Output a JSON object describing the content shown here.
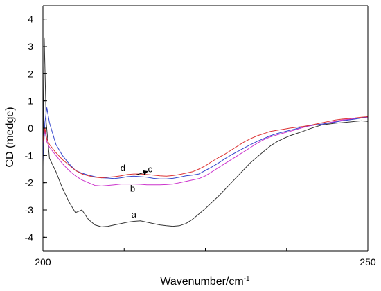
{
  "chart_data": {
    "type": "line",
    "title": "",
    "xlabel": "Wavenumber/cm",
    "xlabel_superscript": "-1",
    "ylabel": "CD (medge)",
    "xlim": [
      200,
      250
    ],
    "ylim": [
      -4.5,
      4.5
    ],
    "x_ticks": [
      200,
      250
    ],
    "y_ticks": [
      -4,
      -3,
      -2,
      -1,
      0,
      1,
      2,
      3,
      4
    ],
    "grid": false,
    "legend": "none",
    "series": [
      {
        "name": "a",
        "color": "#333333",
        "points": [
          [
            200,
            -1.4
          ],
          [
            200.2,
            3.3
          ],
          [
            200.5,
            0.2
          ],
          [
            201,
            -1.1
          ],
          [
            202,
            -1.6
          ],
          [
            203,
            -2.2
          ],
          [
            204,
            -2.7
          ],
          [
            205,
            -3.1
          ],
          [
            206,
            -3.0
          ],
          [
            207,
            -3.35
          ],
          [
            208,
            -3.55
          ],
          [
            209,
            -3.62
          ],
          [
            210,
            -3.6
          ],
          [
            211,
            -3.55
          ],
          [
            212,
            -3.5
          ],
          [
            213,
            -3.45
          ],
          [
            214,
            -3.42
          ],
          [
            215,
            -3.4
          ],
          [
            216,
            -3.45
          ],
          [
            217,
            -3.5
          ],
          [
            218,
            -3.55
          ],
          [
            219,
            -3.58
          ],
          [
            220,
            -3.6
          ],
          [
            221,
            -3.58
          ],
          [
            222,
            -3.5
          ],
          [
            223,
            -3.35
          ],
          [
            224,
            -3.15
          ],
          [
            225,
            -2.95
          ],
          [
            226,
            -2.72
          ],
          [
            227,
            -2.5
          ],
          [
            228,
            -2.25
          ],
          [
            229,
            -2.0
          ],
          [
            230,
            -1.75
          ],
          [
            231,
            -1.5
          ],
          [
            232,
            -1.25
          ],
          [
            233,
            -1.05
          ],
          [
            234,
            -0.85
          ],
          [
            235,
            -0.65
          ],
          [
            236,
            -0.5
          ],
          [
            237,
            -0.38
          ],
          [
            238,
            -0.28
          ],
          [
            239,
            -0.2
          ],
          [
            240,
            -0.12
          ],
          [
            241,
            -0.03
          ],
          [
            242,
            0.05
          ],
          [
            243,
            0.12
          ],
          [
            244,
            0.15
          ],
          [
            245,
            0.18
          ],
          [
            246,
            0.2
          ],
          [
            247,
            0.22
          ],
          [
            248,
            0.25
          ],
          [
            249,
            0.27
          ],
          [
            250,
            0.25
          ]
        ]
      },
      {
        "name": "b",
        "color": "#cc33cc",
        "points": [
          [
            200,
            -0.6
          ],
          [
            200.3,
            -0.1
          ],
          [
            200.6,
            -0.5
          ],
          [
            201,
            -0.7
          ],
          [
            202,
            -1.0
          ],
          [
            203,
            -1.3
          ],
          [
            204,
            -1.55
          ],
          [
            205,
            -1.75
          ],
          [
            206,
            -1.9
          ],
          [
            207,
            -2.0
          ],
          [
            208,
            -2.1
          ],
          [
            209,
            -2.12
          ],
          [
            210,
            -2.1
          ],
          [
            211,
            -2.08
          ],
          [
            212,
            -2.05
          ],
          [
            213,
            -2.05
          ],
          [
            214,
            -2.05
          ],
          [
            215,
            -2.06
          ],
          [
            216,
            -2.08
          ],
          [
            217,
            -2.08
          ],
          [
            218,
            -2.08
          ],
          [
            219,
            -2.07
          ],
          [
            220,
            -2.05
          ],
          [
            221,
            -2.0
          ],
          [
            222,
            -1.95
          ],
          [
            223,
            -1.9
          ],
          [
            224,
            -1.85
          ],
          [
            225,
            -1.75
          ],
          [
            226,
            -1.6
          ],
          [
            227,
            -1.45
          ],
          [
            228,
            -1.3
          ],
          [
            229,
            -1.15
          ],
          [
            230,
            -1.0
          ],
          [
            231,
            -0.85
          ],
          [
            232,
            -0.7
          ],
          [
            233,
            -0.55
          ],
          [
            234,
            -0.42
          ],
          [
            235,
            -0.32
          ],
          [
            236,
            -0.25
          ],
          [
            237,
            -0.18
          ],
          [
            238,
            -0.12
          ],
          [
            239,
            -0.05
          ],
          [
            240,
            0.02
          ],
          [
            241,
            0.08
          ],
          [
            242,
            0.12
          ],
          [
            243,
            0.15
          ],
          [
            244,
            0.2
          ],
          [
            245,
            0.25
          ],
          [
            246,
            0.3
          ],
          [
            247,
            0.32
          ],
          [
            248,
            0.35
          ],
          [
            249,
            0.38
          ],
          [
            250,
            0.4
          ]
        ]
      },
      {
        "name": "c",
        "color": "#3344cc",
        "points": [
          [
            200,
            -1.2
          ],
          [
            200.3,
            0.2
          ],
          [
            200.6,
            0.75
          ],
          [
            201,
            0.2
          ],
          [
            202,
            -0.6
          ],
          [
            203,
            -1.0
          ],
          [
            204,
            -1.3
          ],
          [
            205,
            -1.55
          ],
          [
            206,
            -1.65
          ],
          [
            207,
            -1.72
          ],
          [
            208,
            -1.78
          ],
          [
            209,
            -1.82
          ],
          [
            210,
            -1.83
          ],
          [
            211,
            -1.85
          ],
          [
            212,
            -1.82
          ],
          [
            213,
            -1.78
          ],
          [
            214,
            -1.76
          ],
          [
            215,
            -1.78
          ],
          [
            216,
            -1.8
          ],
          [
            217,
            -1.84
          ],
          [
            218,
            -1.86
          ],
          [
            219,
            -1.86
          ],
          [
            220,
            -1.84
          ],
          [
            221,
            -1.8
          ],
          [
            222,
            -1.75
          ],
          [
            223,
            -1.72
          ],
          [
            224,
            -1.68
          ],
          [
            225,
            -1.55
          ],
          [
            226,
            -1.42
          ],
          [
            227,
            -1.28
          ],
          [
            228,
            -1.12
          ],
          [
            229,
            -0.98
          ],
          [
            230,
            -0.85
          ],
          [
            231,
            -0.72
          ],
          [
            232,
            -0.6
          ],
          [
            233,
            -0.48
          ],
          [
            234,
            -0.38
          ],
          [
            235,
            -0.28
          ],
          [
            236,
            -0.2
          ],
          [
            237,
            -0.14
          ],
          [
            238,
            -0.08
          ],
          [
            239,
            -0.02
          ],
          [
            240,
            0.05
          ],
          [
            241,
            0.1
          ],
          [
            242,
            0.12
          ],
          [
            243,
            0.15
          ],
          [
            244,
            0.18
          ],
          [
            245,
            0.22
          ],
          [
            246,
            0.27
          ],
          [
            247,
            0.3
          ],
          [
            248,
            0.33
          ],
          [
            249,
            0.37
          ],
          [
            250,
            0.42
          ]
        ]
      },
      {
        "name": "d",
        "color": "#dd3333",
        "points": [
          [
            200,
            -0.5
          ],
          [
            200.3,
            0.0
          ],
          [
            200.6,
            -0.4
          ],
          [
            201,
            -0.6
          ],
          [
            202,
            -0.9
          ],
          [
            203,
            -1.15
          ],
          [
            204,
            -1.35
          ],
          [
            205,
            -1.55
          ],
          [
            206,
            -1.68
          ],
          [
            207,
            -1.75
          ],
          [
            208,
            -1.8
          ],
          [
            209,
            -1.82
          ],
          [
            210,
            -1.8
          ],
          [
            211,
            -1.78
          ],
          [
            212,
            -1.75
          ],
          [
            213,
            -1.7
          ],
          [
            214,
            -1.68
          ],
          [
            215,
            -1.68
          ],
          [
            216,
            -1.7
          ],
          [
            217,
            -1.72
          ],
          [
            218,
            -1.75
          ],
          [
            219,
            -1.76
          ],
          [
            220,
            -1.74
          ],
          [
            221,
            -1.7
          ],
          [
            222,
            -1.65
          ],
          [
            223,
            -1.6
          ],
          [
            224,
            -1.5
          ],
          [
            225,
            -1.38
          ],
          [
            226,
            -1.22
          ],
          [
            227,
            -1.08
          ],
          [
            228,
            -0.95
          ],
          [
            229,
            -0.8
          ],
          [
            230,
            -0.65
          ],
          [
            231,
            -0.5
          ],
          [
            232,
            -0.38
          ],
          [
            233,
            -0.28
          ],
          [
            234,
            -0.2
          ],
          [
            235,
            -0.12
          ],
          [
            236,
            -0.08
          ],
          [
            237,
            -0.04
          ],
          [
            238,
            0.0
          ],
          [
            239,
            0.03
          ],
          [
            240,
            0.06
          ],
          [
            241,
            0.1
          ],
          [
            242,
            0.15
          ],
          [
            243,
            0.2
          ],
          [
            244,
            0.25
          ],
          [
            245,
            0.3
          ],
          [
            246,
            0.33
          ],
          [
            247,
            0.35
          ],
          [
            248,
            0.37
          ],
          [
            249,
            0.4
          ],
          [
            250,
            0.42
          ]
        ]
      }
    ],
    "curve_labels": [
      {
        "text": "a",
        "x": 214,
        "y": -3.28
      },
      {
        "text": "b",
        "x": 213.8,
        "y": -2.32
      },
      {
        "text": "c",
        "x": 216.5,
        "y": -1.62
      },
      {
        "text": "d",
        "x": 212.3,
        "y": -1.57
      }
    ],
    "arrow": {
      "from": [
        214.3,
        -1.72
      ],
      "to": [
        216.2,
        -1.58
      ]
    }
  }
}
